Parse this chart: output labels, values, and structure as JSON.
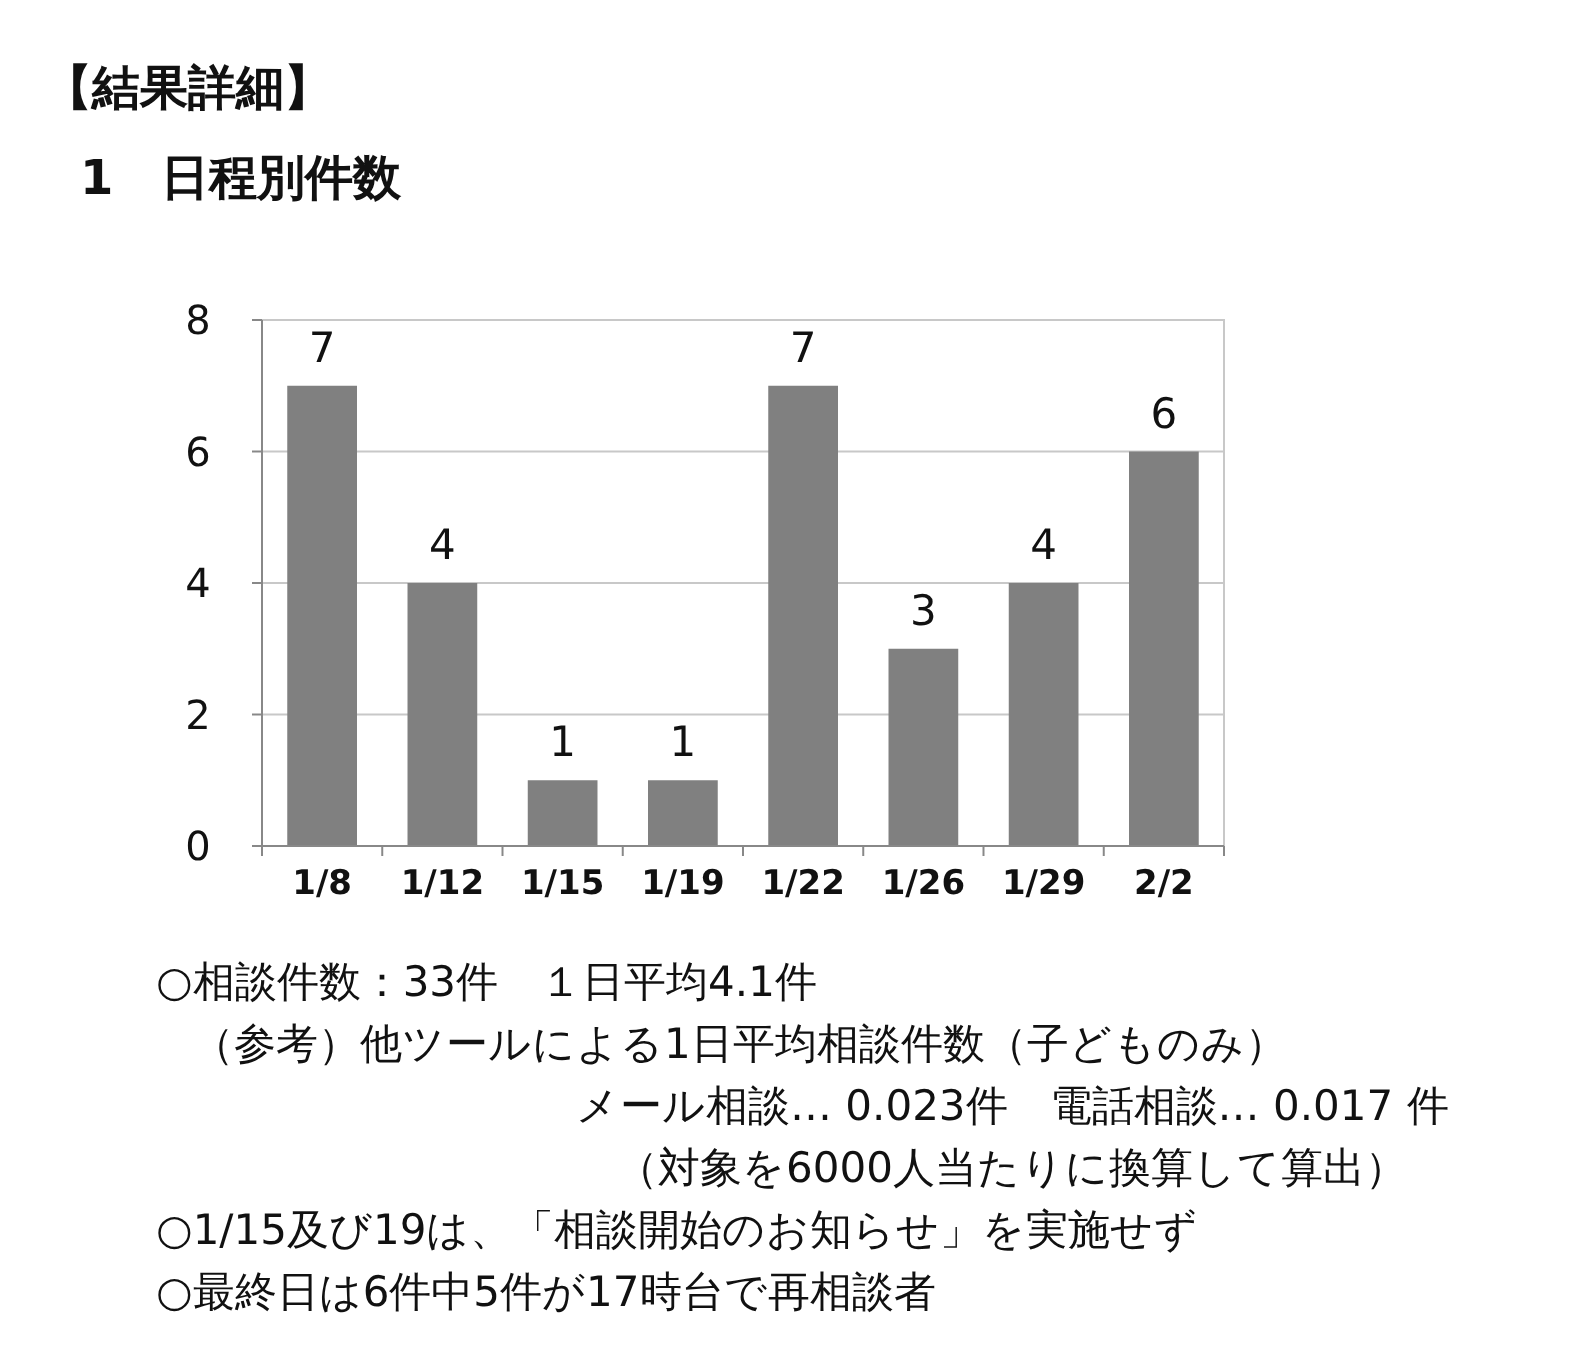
{
  "chart_data": {
    "type": "bar",
    "title": "【結果詳細】",
    "subtitle": "1　日程別件数",
    "categories": [
      "1/8",
      "1/12",
      "1/15",
      "1/19",
      "1/22",
      "1/26",
      "1/29",
      "2/2"
    ],
    "values": [
      7,
      4,
      1,
      1,
      7,
      3,
      4,
      6
    ],
    "color": "#808080",
    "data_labels": true,
    "ylim": [
      0,
      8
    ],
    "yticks": [
      0,
      2,
      4,
      6,
      8
    ],
    "grid": "y",
    "annotations": [
      "○相談件数：33件　１日平均4.1件",
      "（参考）他ツールによる1日平均相談件数（子どものみ）",
      "メール相談… 0.023件　電話相談… 0.017 件",
      "（対象を6000人当たりに換算して算出）",
      "○1/15及び19は、「相談開始のお知らせ」を実施せず",
      "○最終日は6件中5件が17時台で再相談者"
    ]
  }
}
